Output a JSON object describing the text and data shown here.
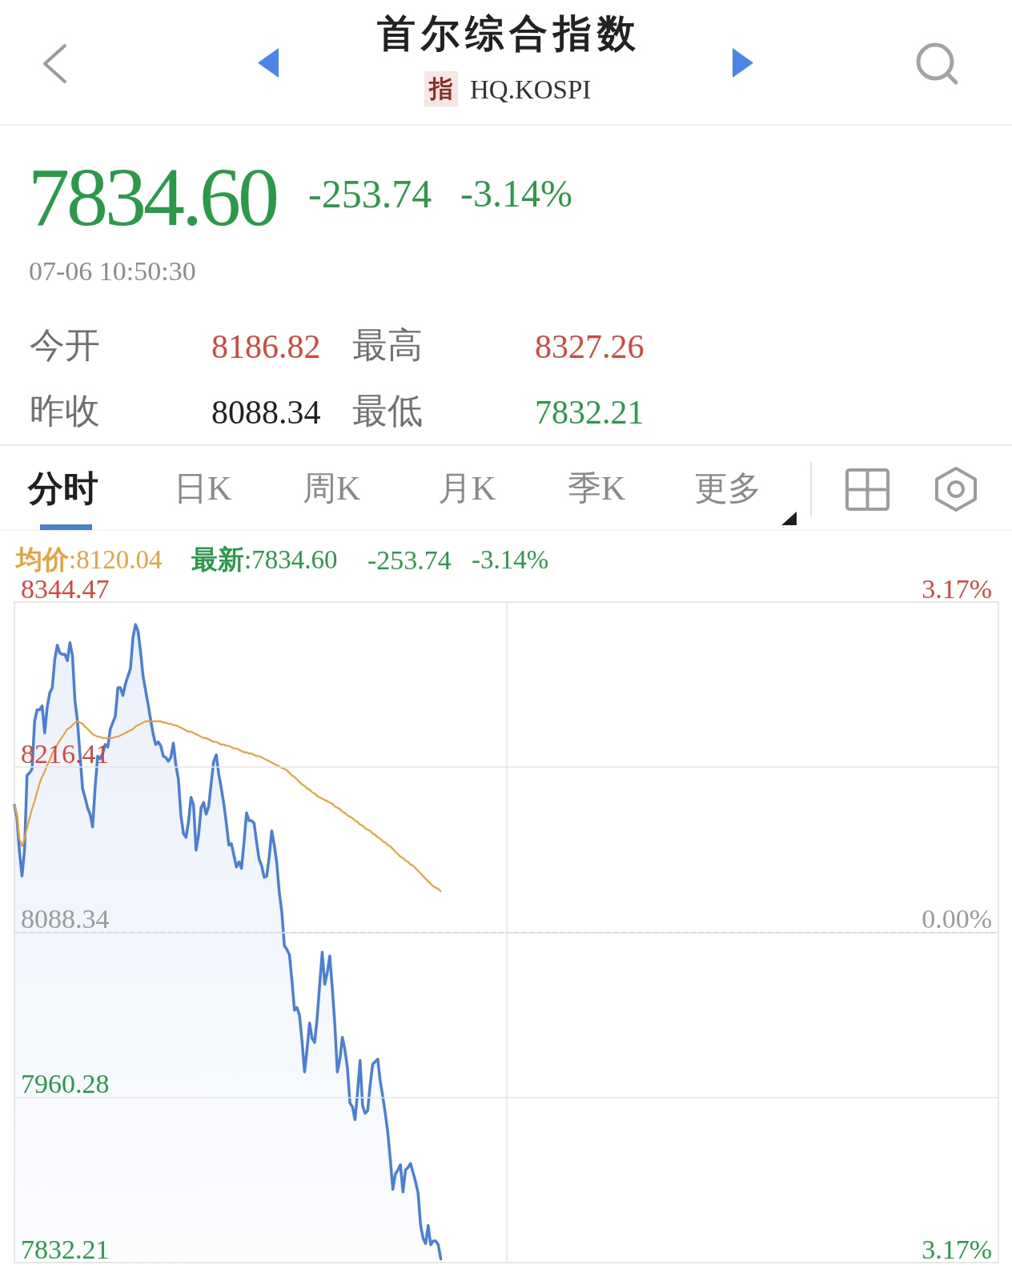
{
  "chart_data": {
    "type": "line",
    "title": "首尔综合指数",
    "subtitle": "HQ.KOSPI",
    "annotations": [
      "指",
      "7834.60",
      "-253.74",
      "-3.14%",
      "07-06 10:50:30",
      "今开",
      "8186.82",
      "最高",
      "8327.26",
      "昨收",
      "8088.34",
      "最低",
      "7832.21",
      "分时",
      "日K",
      "周K",
      "月K",
      "季K",
      "更多",
      "均价:8120.04",
      "最新:7834.60",
      "-253.74",
      "-3.14%"
    ],
    "categories": [
      null,
      null,
      null,
      null,
      null,
      null,
      null,
      null,
      null,
      null,
      null,
      null,
      null,
      null,
      null,
      null,
      null,
      null,
      null,
      null,
      null,
      null,
      null,
      null,
      null,
      null,
      null,
      null,
      null,
      null,
      null,
      null,
      null,
      null,
      null,
      null,
      null,
      null,
      null,
      null,
      null,
      null,
      null,
      null,
      null,
      null,
      null,
      null,
      null,
      null,
      null,
      null,
      null,
      null,
      null,
      null,
      null,
      null,
      null,
      null,
      null,
      null,
      null,
      null,
      null,
      null,
      null,
      null,
      null,
      null,
      null,
      null,
      null,
      null,
      null,
      null,
      null,
      null,
      null,
      null,
      null,
      null,
      null,
      null,
      null,
      null,
      null,
      null,
      null,
      null,
      null,
      null,
      null,
      null,
      null,
      null,
      null,
      null,
      null,
      null,
      null,
      null,
      null,
      null,
      null,
      null,
      null,
      null,
      null,
      null,
      null,
      null,
      null,
      null,
      null,
      null,
      null,
      null,
      null,
      null,
      null,
      null,
      null,
      null,
      null,
      null,
      null,
      null,
      null,
      null,
      null,
      null,
      null,
      null,
      null,
      null,
      null,
      null,
      null,
      null,
      null,
      null,
      null,
      null,
      null,
      null,
      null,
      null,
      null,
      null,
      null,
      null,
      null,
      null,
      null,
      null,
      null,
      null,
      null,
      null,
      null,
      null,
      null,
      null,
      null,
      null,
      null,
      null,
      null,
      null,
      null,
      null,
      null,
      null,
      null,
      null,
      null,
      null,
      null,
      null,
      null,
      null,
      null,
      null,
      null,
      null,
      null,
      null,
      null,
      null,
      null,
      null,
      null,
      null,
      null,
      null,
      null,
      null,
      null,
      null,
      null,
      null,
      null,
      null,
      null,
      null,
      null,
      null,
      null,
      null,
      null,
      null,
      null,
      null,
      null,
      null,
      null,
      null,
      null,
      null,
      null,
      null,
      null,
      null,
      null,
      null,
      null,
      null,
      null,
      null,
      null,
      null,
      null,
      null,
      null,
      null,
      null,
      null,
      null,
      null,
      null,
      null,
      null,
      null,
      null,
      null,
      null,
      null,
      null,
      null,
      null,
      null,
      null,
      null,
      null,
      null,
      null,
      null,
      null,
      null,
      null,
      null,
      null,
      null,
      null,
      null,
      null,
      null,
      null,
      null,
      null,
      null,
      null,
      null,
      null,
      null,
      null,
      null,
      null,
      null,
      null,
      null,
      null,
      null,
      null,
      null,
      null,
      null,
      null,
      null,
      null,
      null,
      null,
      null,
      null,
      null,
      null,
      null,
      null,
      null,
      null,
      null,
      null,
      null,
      null,
      null,
      null,
      null,
      null,
      null,
      null,
      null,
      null,
      null,
      null,
      null,
      null,
      null,
      null,
      null,
      null,
      null,
      null,
      null,
      null,
      null,
      null,
      null,
      null,
      null,
      null,
      null,
      null,
      null,
      null,
      null,
      null,
      null,
      null,
      null,
      null,
      null,
      null,
      null,
      null,
      null,
      null,
      null,
      null,
      null,
      null,
      null,
      null,
      null,
      null,
      null,
      null,
      null,
      null,
      null,
      null,
      null,
      null,
      null,
      null,
      null,
      null,
      null,
      null,
      null,
      null,
      null,
      null,
      null,
      null,
      null,
      null,
      null,
      null,
      null,
      null,
      null,
      null,
      null,
      null,
      null,
      null,
      null,
      null,
      null,
      null
    ],
    "series": [
      {
        "type": "area",
        "color": "#4a7fd6",
        "values": [
          8187,
          8177,
          8151,
          8132,
          8152,
          8210,
          8212,
          8215,
          8252,
          8261,
          8261,
          8264,
          8243,
          8263,
          8274,
          8278,
          8300,
          8311,
          8305,
          8304,
          8304,
          8299,
          8313,
          8303,
          8268,
          8252,
          8226,
          8200,
          8193,
          8185,
          8180,
          8170,
          8201,
          8225,
          8223,
          8227,
          8234,
          8232,
          8246,
          8251,
          8256,
          8278,
          8278,
          8272,
          8281,
          8287,
          8293,
          8317,
          8327,
          8322,
          8306,
          8287,
          8276,
          8265,
          8253,
          8242,
          8234,
          8236,
          8233,
          8225,
          8224,
          8221,
          8224,
          8235,
          8218,
          8207,
          8179,
          8165,
          8162,
          8174,
          8193,
          8187,
          8152,
          8164,
          8185,
          8189,
          8180,
          8186,
          8204,
          8221,
          8226,
          8211,
          8200,
          8188,
          8173,
          8156,
          8157,
          8148,
          8139,
          8143,
          8138,
          8158,
          8181,
          8175,
          8175,
          8173,
          8158,
          8145,
          8140,
          8131,
          8132,
          8147,
          8167,
          8156,
          8142,
          8119,
          8104,
          8078,
          8075,
          8071,
          8051,
          8028,
          8030,
          8024,
          8004,
          7980,
          7998,
          8018,
          8006,
          8003,
          8022,
          8048,
          8073,
          8048,
          8057,
          8070,
          8045,
          8017,
          7980,
          7990,
          8007,
          7997,
          7983,
          7956,
          7953,
          7943,
          7964,
          7989,
          7954,
          7948,
          7950,
          7970,
          7986,
          7988,
          7990,
          7973,
          7961,
          7948,
          7933,
          7912,
          7889,
          7901,
          7904,
          7908,
          7887,
          7904,
          7906,
          7909,
          7902,
          7895,
          7886,
          7861,
          7851,
          7847,
          7861,
          7846,
          7849,
          7849,
          7846,
          7835,
          null,
          null,
          null,
          null,
          null,
          null,
          null,
          null,
          null,
          null,
          null,
          null,
          null,
          null,
          null,
          null,
          null,
          null,
          null,
          null,
          null,
          null,
          null,
          null,
          null,
          null,
          null,
          null,
          null,
          null,
          null,
          null,
          null,
          null,
          null,
          null,
          null,
          null,
          null,
          null,
          null,
          null,
          null,
          null,
          null,
          null,
          null,
          null,
          null,
          null,
          null,
          null,
          null,
          null,
          null,
          null,
          null,
          null,
          null,
          null,
          null,
          null,
          null,
          null,
          null,
          null,
          null,
          null,
          null,
          null,
          null,
          null,
          null,
          null,
          null,
          null,
          null,
          null,
          null,
          null,
          null,
          null,
          null,
          null,
          null,
          null,
          null,
          null,
          null,
          null,
          null,
          null,
          null,
          null,
          null,
          null,
          null,
          null,
          null,
          null,
          null,
          null,
          null,
          null,
          null,
          null,
          null,
          null,
          null,
          null,
          null,
          null,
          null,
          null,
          null,
          null,
          null,
          null,
          null,
          null,
          null,
          null,
          null,
          null,
          null,
          null,
          null,
          null,
          null,
          null,
          null,
          null,
          null,
          null,
          null,
          null,
          null,
          null,
          null,
          null,
          null,
          null,
          null,
          null,
          null,
          null,
          null,
          null,
          null,
          null,
          null,
          null,
          null,
          null,
          null,
          null,
          null,
          null,
          null,
          null,
          null,
          null,
          null,
          null,
          null,
          null,
          null,
          null,
          null,
          null,
          null,
          null,
          null,
          null,
          null,
          null,
          null,
          null,
          null,
          null,
          null,
          null,
          null,
          null,
          null,
          null,
          null,
          null,
          null,
          null,
          null,
          null,
          null,
          null,
          null,
          null,
          null,
          null,
          null,
          null,
          null,
          null,
          null,
          null,
          null,
          null,
          null,
          null,
          null,
          null,
          null,
          null,
          null,
          null,
          null,
          null,
          null,
          null,
          null,
          null,
          null
        ]
      },
      {
        "color": "#e6a23c",
        "values": [
          8187,
          8179,
          8161,
          8155,
          8161,
          8169,
          8177,
          8184,
          8190,
          8197,
          8204,
          8209,
          8213,
          8218,
          8222,
          8227,
          8230,
          8234,
          8237,
          8240,
          8243,
          8246,
          8247,
          8249,
          8251,
          8252,
          8251,
          8250,
          8248,
          8246,
          8244,
          8242,
          8241,
          8240,
          8240,
          8239,
          8239,
          8239,
          8239,
          8239,
          8240,
          8240,
          8241,
          8242,
          8243,
          8244,
          8245,
          8246,
          8248,
          8249,
          8250,
          8251,
          8252,
          8252,
          8252,
          8252,
          8252,
          8252,
          8252,
          8251,
          8251,
          8250,
          8250,
          8249,
          8249,
          8248,
          8247,
          8246,
          8245,
          8244,
          8244,
          8243,
          8242,
          8241,
          8240,
          8239,
          8239,
          8238,
          8237,
          8236,
          8236,
          8235,
          8234,
          8234,
          8233,
          8233,
          8232,
          8231,
          8231,
          8230,
          8229,
          8228,
          8228,
          8227,
          8227,
          8226,
          8225,
          8225,
          8224,
          8223,
          8222,
          8221,
          8220,
          8219,
          8218,
          8217,
          8216,
          8215,
          8214,
          8212,
          8210,
          8209,
          8207,
          8205,
          8203,
          8202,
          8200,
          8199,
          8197,
          8196,
          8194,
          8193,
          8192,
          8191,
          8190,
          8189,
          8188,
          8186,
          8185,
          8184,
          8182,
          8181,
          8179,
          8178,
          8177,
          8175,
          8174,
          8172,
          8171,
          8169,
          8168,
          8167,
          8165,
          8164,
          8162,
          8161,
          8159,
          8158,
          8156,
          8155,
          8153,
          8151,
          8149,
          8147,
          8146,
          8144,
          8143,
          8141,
          8140,
          8138,
          8136,
          8134,
          8132,
          8130,
          8128,
          8126,
          8124,
          8123,
          8122,
          8120,
          null,
          null,
          null,
          null,
          null,
          null,
          null,
          null,
          null,
          null,
          null,
          null,
          null,
          null,
          null,
          null,
          null,
          null,
          null,
          null,
          null,
          null,
          null,
          null,
          null,
          null,
          null,
          null,
          null,
          null,
          null,
          null,
          null,
          null,
          null,
          null,
          null,
          null,
          null,
          null,
          null,
          null,
          null,
          null,
          null,
          null,
          null,
          null,
          null,
          null,
          null,
          null,
          null,
          null,
          null,
          null,
          null,
          null,
          null,
          null,
          null,
          null,
          null,
          null,
          null,
          null,
          null,
          null,
          null,
          null,
          null,
          null,
          null,
          null,
          null,
          null,
          null,
          null,
          null,
          null,
          null,
          null,
          null,
          null,
          null,
          null,
          null,
          null,
          null,
          null,
          null,
          null,
          null,
          null,
          null,
          null,
          null,
          null,
          null,
          null,
          null,
          null,
          null,
          null,
          null,
          null,
          null,
          null,
          null,
          null,
          null,
          null,
          null,
          null,
          null,
          null,
          null,
          null,
          null,
          null,
          null,
          null,
          null,
          null,
          null,
          null,
          null,
          null,
          null,
          null,
          null,
          null,
          null,
          null,
          null,
          null,
          null,
          null,
          null,
          null,
          null,
          null,
          null,
          null,
          null,
          null,
          null,
          null,
          null,
          null,
          null,
          null,
          null,
          null,
          null,
          null,
          null,
          null,
          null,
          null,
          null,
          null,
          null,
          null,
          null,
          null,
          null,
          null,
          null,
          null,
          null,
          null,
          null,
          null,
          null,
          null,
          null,
          null,
          null,
          null,
          null,
          null,
          null,
          null,
          null,
          null,
          null,
          null,
          null,
          null,
          null,
          null,
          null,
          null,
          null,
          null,
          null,
          null,
          null,
          null,
          null,
          null,
          null,
          null,
          null,
          null,
          null,
          null,
          null,
          null,
          null,
          null,
          null,
          null,
          null,
          null,
          null,
          null,
          null,
          null,
          null
        ]
      }
    ],
    "ylim": [
      7832.21,
      8344.47
    ],
    "yticks": [
      7832.21,
      7960.28,
      8088.34,
      8216.41,
      8344.47
    ],
    "y2lim": [
      -3.17,
      3.17
    ],
    "y2ticks": [
      {
        "value": -3.17,
        "label": "3.17%"
      },
      {
        "value": 0,
        "label": "0.00%"
      },
      {
        "value": 3.17,
        "label": "3.17%"
      }
    ],
    "ref_lines": [
      {
        "axis": "y",
        "value": 8088.34,
        "color": "#a8b2c4",
        "line_style": "dashed"
      }
    ],
    "grid": true
  }
}
